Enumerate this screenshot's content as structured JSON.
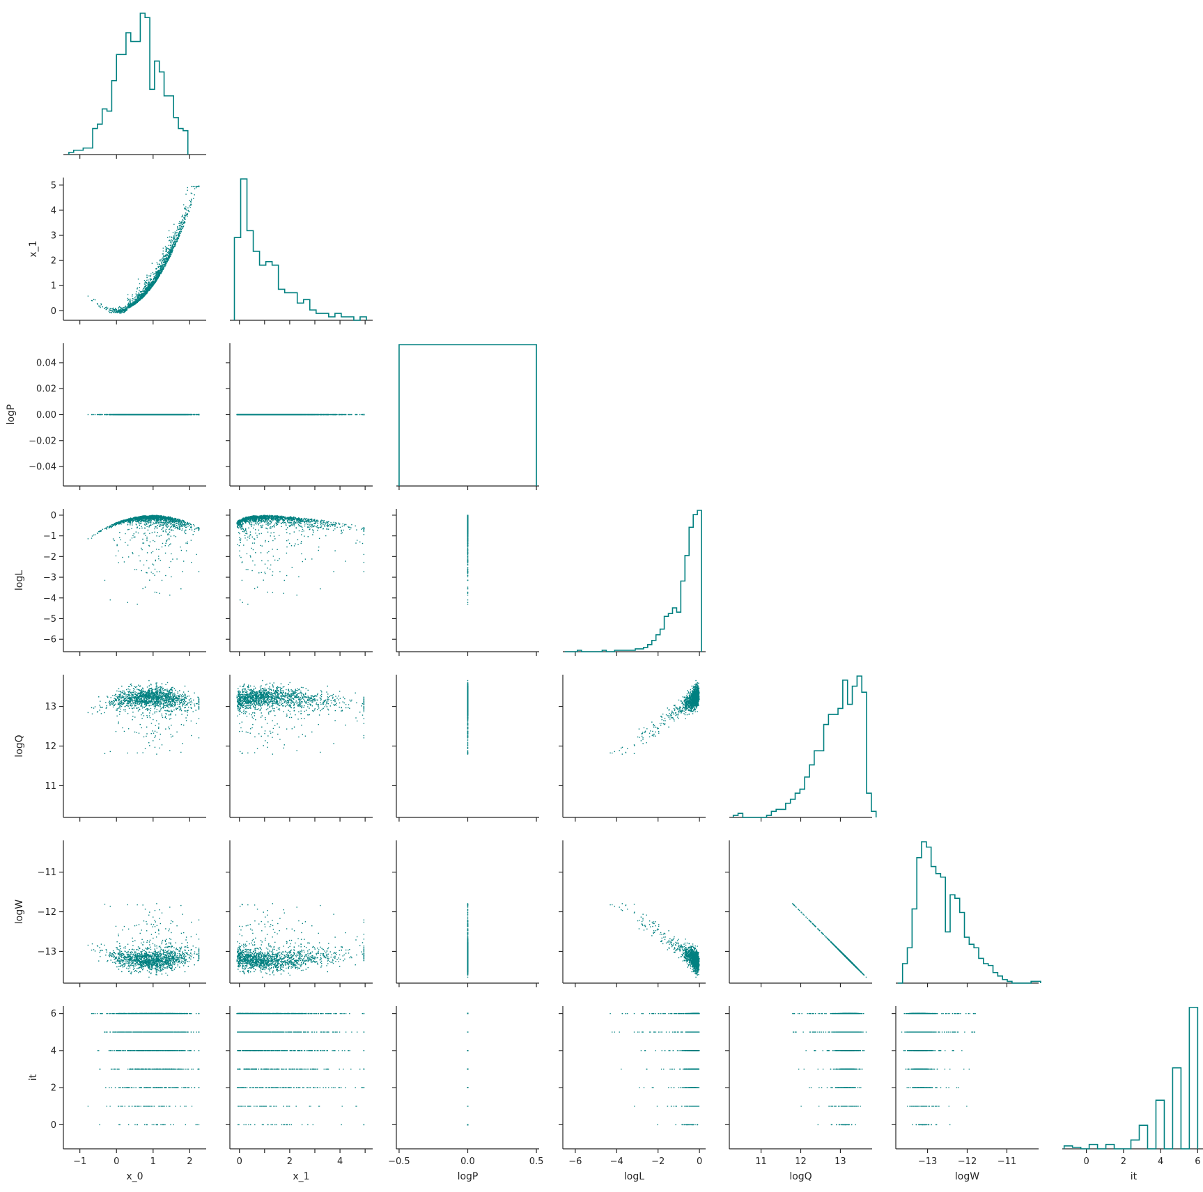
{
  "chart_data": {
    "type": "pairplot",
    "color": "#008080",
    "variables": [
      {
        "name": "x_0",
        "ticks": [
          -1,
          0,
          1,
          2
        ],
        "lim": [
          -1.45,
          2.45
        ]
      },
      {
        "name": "x_1",
        "ticks": [
          0,
          1,
          2,
          3,
          4,
          5
        ],
        "lim": [
          -0.38,
          5.3
        ]
      },
      {
        "name": "logP",
        "ticks": [
          -0.04,
          -0.02,
          0.0,
          0.02,
          0.04
        ],
        "x_ticks": [
          -0.5,
          0.0,
          0.5
        ],
        "lim": [
          -0.055,
          0.055
        ],
        "x_lim": [
          -0.52,
          0.52
        ]
      },
      {
        "name": "logL",
        "ticks": [
          -6,
          -5,
          -4,
          -3,
          -2,
          -1,
          0
        ],
        "x_ticks": [
          -6,
          -4,
          -2,
          0
        ],
        "lim": [
          -6.6,
          0.3
        ]
      },
      {
        "name": "logQ",
        "ticks": [
          11,
          12,
          13
        ],
        "lim": [
          10.2,
          13.8
        ]
      },
      {
        "name": "logW",
        "ticks": [
          -13,
          -12,
          -11
        ],
        "lim": [
          -13.8,
          -10.2
        ]
      },
      {
        "name": "it",
        "ticks": [
          0,
          2,
          4,
          6
        ],
        "lim": [
          -1.3,
          6.4
        ]
      }
    ],
    "tick_labels": {
      "x_0": [
        "−1",
        "0",
        "1",
        "2"
      ],
      "x_1_y": [
        "0",
        "1",
        "2",
        "3",
        "4",
        "5"
      ],
      "x_1_x": [
        "0",
        "2",
        "4"
      ],
      "logP_y": [
        "−0.04",
        "−0.02",
        "0.00",
        "0.02",
        "0.04"
      ],
      "logP_x": [
        "−0.5",
        "0.0",
        "0.5"
      ],
      "logL_y": [
        "−6",
        "−5",
        "−4",
        "−3",
        "−2",
        "−1",
        "0"
      ],
      "logL_x": [
        "−6",
        "−4",
        "−2",
        "0"
      ],
      "logQ": [
        "11",
        "12",
        "13"
      ],
      "logW": [
        "−13",
        "−12",
        "−11"
      ],
      "it": [
        "0",
        "2",
        "4",
        "6"
      ]
    },
    "diagonal_histograms": {
      "x_0": {
        "edges_start": -1.3,
        "bin_width": 0.13,
        "counts": [
          1,
          2,
          2,
          3,
          3,
          12,
          14,
          21,
          20,
          34,
          46,
          46,
          56,
          52,
          52,
          65,
          63,
          30,
          43,
          38,
          27,
          27,
          17,
          12,
          11
        ]
      },
      "x_1": {
        "edges_start": -0.2,
        "bin_width": 0.25,
        "counts": [
          24,
          41,
          26,
          20,
          16,
          17,
          16,
          9,
          8,
          8,
          5,
          6,
          3,
          2,
          2,
          1,
          2,
          1,
          1,
          0,
          1
        ]
      },
      "logP": {
        "edges_start": -0.5,
        "bin_width": 1.0,
        "counts": [
          1
        ]
      },
      "logL": {
        "edges_start": -6.5,
        "bin_width": 0.2,
        "counts": [
          0,
          0,
          0,
          1,
          0,
          0,
          0,
          0,
          0,
          1,
          0,
          0,
          1,
          1,
          1,
          1,
          1,
          2,
          2,
          3,
          5,
          8,
          12,
          16,
          25,
          27,
          31,
          28,
          50,
          68,
          88,
          97,
          100
        ]
      },
      "logQ": {
        "edges_start": 10.3,
        "bin_width": 0.12,
        "counts": [
          1,
          2,
          0,
          0,
          0,
          0,
          0,
          1,
          3,
          4,
          4,
          7,
          9,
          12,
          14,
          20,
          26,
          33,
          33,
          46,
          51,
          51,
          54,
          68,
          56,
          65,
          70,
          62,
          12,
          3
        ]
      },
      "logW": {
        "edges_start": -13.75,
        "bin_width": 0.12,
        "counts": [
          0,
          11,
          20,
          42,
          71,
          80,
          77,
          66,
          62,
          60,
          29,
          50,
          48,
          40,
          26,
          22,
          20,
          14,
          11,
          10,
          6,
          4,
          2,
          1,
          0,
          0,
          0,
          0,
          1,
          1
        ]
      },
      "it": {
        "edges_start": -1.2,
        "bin_width": 0.45,
        "counts": [
          2,
          1,
          0,
          3,
          0,
          3,
          0,
          0,
          6,
          16,
          0,
          33,
          0,
          55,
          0,
          96
        ]
      }
    }
  }
}
